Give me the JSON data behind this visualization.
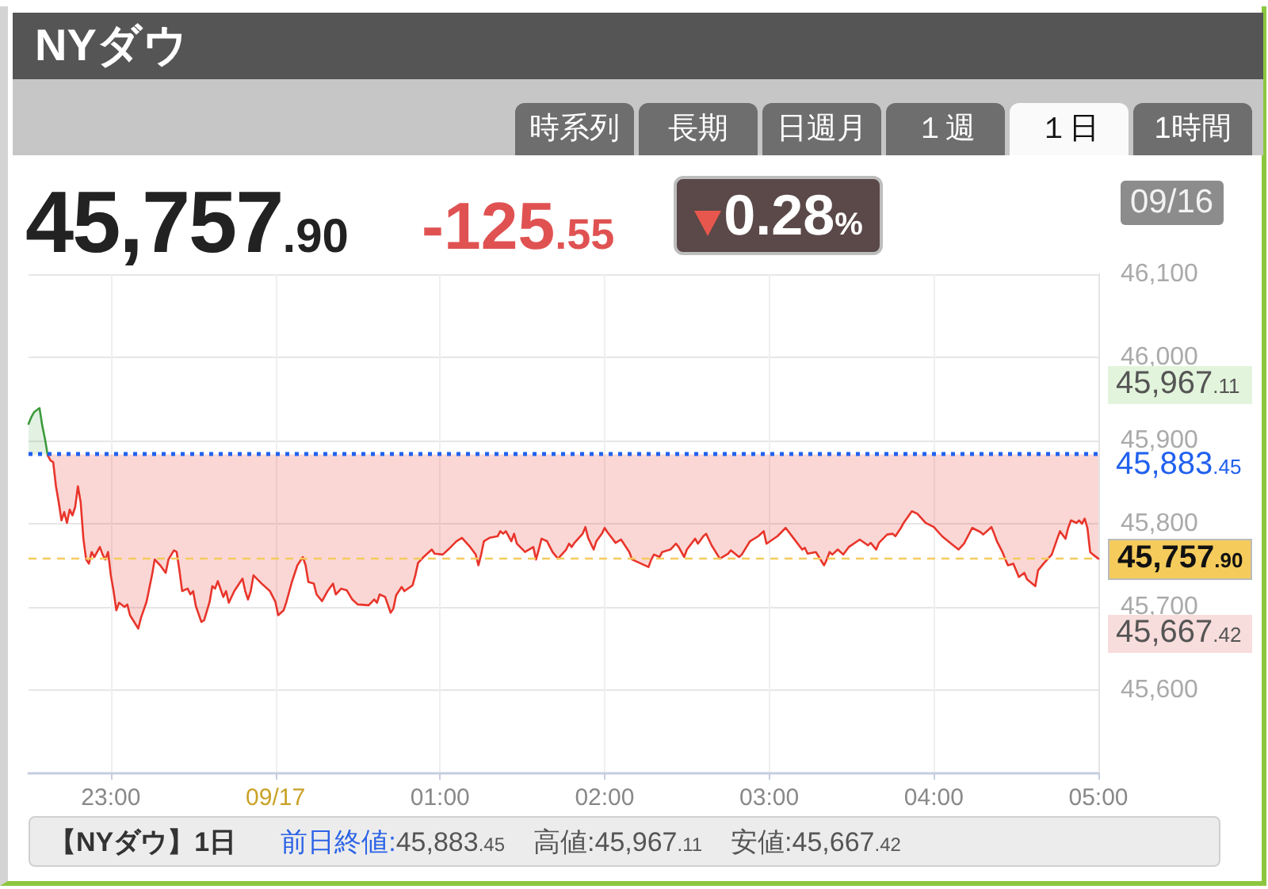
{
  "chart_data": {
    "type": "area",
    "title": "NYダウ",
    "annotations": [
      "45,757.90",
      "-125.55",
      "0.28%",
      "09/16",
      "時系列",
      "長期",
      "日週月",
      "１週",
      "１日",
      "1時間",
      "【NYダウ】1日",
      "前日終値:45,883.45",
      "高値:45,967.11",
      "安値:45,667.42",
      "45,967.11",
      "45,667.42"
    ],
    "series": [
      {
        "color": "#3c9a3c",
        "x": [
          "--09-16T22:30",
          "--09-16T22:31",
          "--09-16T22:32",
          "--09-16T22:34",
          "--09-16T22:35",
          "--09-16T22:36",
          "--09-16T22:37"
        ],
        "values": [
          45920,
          45928,
          45934,
          45939,
          45918,
          45902,
          45882
        ]
      },
      {
        "type": "line",
        "color": "#e8352b",
        "x": [
          "--09-16T22:37",
          "--09-16T22:38",
          "--09-16T22:39",
          "--09-16T22:40",
          "--09-16T22:41",
          "--09-16T22:42",
          "--09-16T22:43",
          "--09-16T22:44",
          "--09-16T22:45",
          "--09-16T22:46",
          "--09-16T22:47",
          "--09-16T22:48",
          "--09-16T22:49",
          "--09-16T22:50",
          "--09-16T22:51",
          "--09-16T22:52",
          "--09-16T22:53",
          "--09-16T22:54",
          "--09-16T22:56",
          "--09-16T22:57",
          "--09-16T22:58",
          "--09-16T22:59",
          "--09-16T23:00",
          "--09-16T23:01",
          "--09-16T23:02",
          "--09-16T23:03",
          "--09-16T23:05",
          "--09-16T23:06",
          "--09-16T23:07",
          "--09-16T23:10",
          "--09-16T23:11",
          "--09-16T23:13",
          "--09-16T23:15",
          "--09-16T23:16",
          "--09-16T23:18",
          "--09-16T23:20",
          "--09-16T23:21",
          "--09-16T23:23",
          "--09-16T23:24",
          "--09-16T23:25",
          "--09-16T23:26",
          "--09-16T23:28",
          "--09-16T23:29",
          "--09-16T23:30",
          "--09-16T23:31",
          "--09-16T23:33",
          "--09-16T23:34",
          "--09-16T23:36",
          "--09-16T23:37",
          "--09-16T23:38",
          "--09-16T23:39",
          "--09-16T23:41",
          "--09-16T23:42",
          "--09-16T23:43",
          "--09-16T23:45",
          "--09-16T23:48",
          "--09-16T23:49",
          "--09-16T23:50",
          "--09-16T23:51",
          "--09-16T23:52",
          "--09-16T23:55",
          "--09-16T23:58",
          "--09-17T00:00",
          "--09-17T00:01",
          "--09-17T00:03",
          "--09-17T00:04",
          "--09-17T00:06",
          "--09-17T00:08",
          "--09-17T00:10",
          "--09-17T00:11",
          "--09-17T00:12",
          "--09-17T00:14",
          "--09-17T00:15",
          "--09-17T00:17",
          "--09-17T00:19",
          "--09-17T00:21",
          "--09-17T00:22",
          "--09-17T00:24",
          "--09-17T00:26",
          "--09-17T00:28",
          "--09-17T00:30",
          "--09-17T00:34",
          "--09-17T00:36",
          "--09-17T00:37",
          "--09-17T00:38",
          "--09-17T00:40",
          "--09-17T00:42",
          "--09-17T00:43",
          "--09-17T00:44",
          "--09-17T00:46",
          "--09-17T00:47",
          "--09-17T00:50",
          "--09-17T00:51",
          "--09-17T00:52",
          "--09-17T00:54",
          "--09-17T00:57",
          "--09-17T00:58",
          "--09-17T01:01",
          "--09-17T01:03",
          "--09-17T01:06",
          "--09-17T01:08",
          "--09-17T01:11",
          "--09-17T01:13",
          "--09-17T01:14",
          "--09-17T01:15",
          "--09-17T01:16",
          "--09-17T01:18",
          "--09-17T01:21",
          "--09-17T01:22",
          "--09-17T01:23",
          "--09-17T01:24",
          "--09-17T01:26",
          "--09-17T01:27",
          "--09-17T01:28",
          "--09-17T01:31",
          "--09-17T01:34",
          "--09-17T01:35",
          "--09-17T01:36",
          "--09-17T01:37",
          "--09-17T01:39",
          "--09-17T01:41",
          "--09-17T01:43",
          "--09-17T01:46",
          "--09-17T01:47",
          "--09-17T01:48",
          "--09-17T01:49",
          "--09-17T01:52",
          "--09-17T01:53",
          "--09-17T01:54",
          "--09-17T01:56",
          "--09-17T01:57",
          "--09-17T01:59",
          "--09-17T02:00",
          "--09-17T02:01",
          "--09-17T02:04",
          "--09-17T02:06",
          "--09-17T02:09",
          "--09-17T02:10",
          "--09-17T02:16",
          "--09-17T02:17",
          "--09-17T02:18",
          "--09-17T02:20",
          "--09-17T02:21",
          "--09-17T02:24",
          "--09-17T02:26",
          "--09-17T02:27",
          "--09-17T02:29",
          "--09-17T02:30",
          "--09-17T02:33",
          "--09-17T02:34",
          "--09-17T02:36",
          "--09-17T02:37",
          "--09-17T02:39",
          "--09-17T02:42",
          "--09-17T02:45",
          "--09-17T02:46",
          "--09-17T02:49",
          "--09-17T02:50",
          "--09-17T02:53",
          "--09-17T02:56",
          "--09-17T02:58",
          "--09-17T02:59",
          "--09-17T03:03",
          "--09-17T03:06",
          "--09-17T03:09",
          "--09-17T03:12",
          "--09-17T03:13",
          "--09-17T03:14",
          "--09-17T03:17",
          "--09-17T03:20",
          "--09-17T03:21",
          "--09-17T03:22",
          "--09-17T03:23",
          "--09-17T03:25",
          "--09-17T03:27",
          "--09-17T03:29",
          "--09-17T03:33",
          "--09-17T03:36",
          "--09-17T03:37",
          "--09-17T03:39",
          "--09-17T03:40",
          "--09-17T03:43",
          "--09-17T03:45",
          "--09-17T03:46",
          "--09-17T03:48",
          "--09-17T03:49",
          "--09-17T03:52",
          "--09-17T03:54",
          "--09-17T03:57",
          "--09-17T04:00",
          "--09-17T04:03",
          "--09-17T04:06",
          "--09-17T04:09",
          "--09-17T04:11",
          "--09-17T04:14",
          "--09-17T04:17",
          "--09-17T04:18",
          "--09-17T04:21",
          "--09-17T04:22",
          "--09-17T04:23",
          "--09-17T04:25",
          "--09-17T04:27",
          "--09-17T04:29",
          "--09-17T04:30",
          "--09-17T04:31",
          "--09-17T04:33",
          "--09-17T04:34",
          "--09-17T04:37",
          "--09-17T04:38",
          "--09-17T04:40",
          "--09-17T04:43",
          "--09-17T04:45",
          "--09-17T04:46",
          "--09-17T04:48",
          "--09-17T04:49",
          "--09-17T04:50",
          "--09-17T04:52",
          "--09-17T04:53",
          "--09-17T04:54",
          "--09-17T04:55",
          "--09-17T04:56",
          "--09-17T04:57",
          "--09-17T04:58",
          "--09-17T05:00"
        ],
        "values": [
          45882,
          45876,
          45874,
          45845,
          45826,
          45804,
          45814,
          45801,
          45817,
          45810,
          45820,
          45845,
          45826,
          45782,
          45757,
          45752,
          45766,
          45760,
          45772,
          45763,
          45757,
          45766,
          45738,
          45719,
          45696,
          45705,
          45700,
          45703,
          45690,
          45674,
          45687,
          45706,
          45738,
          45757,
          45750,
          45741,
          45757,
          45768,
          45766,
          45744,
          45719,
          45722,
          45715,
          45719,
          45701,
          45682,
          45684,
          45706,
          45725,
          45722,
          45731,
          45712,
          45719,
          45705,
          45719,
          45734,
          45719,
          45709,
          45719,
          45738,
          45728,
          45719,
          45706,
          45690,
          45696,
          45706,
          45730,
          45750,
          45760,
          45750,
          45730,
          45728,
          45715,
          45707,
          45719,
          45728,
          45715,
          45722,
          45720,
          45709,
          45703,
          45702,
          45709,
          45705,
          45715,
          45712,
          45693,
          45698,
          45714,
          45724,
          45719,
          45726,
          45738,
          45753,
          45760,
          45769,
          45764,
          45763,
          45769,
          45779,
          45783,
          45772,
          45763,
          45750,
          45763,
          45779,
          45783,
          45785,
          45791,
          45788,
          45791,
          45779,
          45788,
          45776,
          45766,
          45772,
          45757,
          45769,
          45782,
          45779,
          45766,
          45758,
          45769,
          45776,
          45772,
          45777,
          45788,
          45796,
          45783,
          45769,
          45779,
          45788,
          45795,
          45790,
          45777,
          45781,
          45766,
          45757,
          45748,
          45757,
          45763,
          45760,
          45766,
          45769,
          45776,
          45772,
          45760,
          45769,
          45782,
          45776,
          45785,
          45788,
          45774,
          45758,
          45764,
          45768,
          45760,
          45763,
          45779,
          45785,
          45791,
          45776,
          45785,
          45795,
          45782,
          45769,
          45771,
          45764,
          45766,
          45750,
          45757,
          45766,
          45763,
          45769,
          45763,
          45772,
          45781,
          45774,
          45777,
          45769,
          45777,
          45787,
          45788,
          45785,
          45795,
          45801,
          45815,
          45812,
          45801,
          45796,
          45785,
          45777,
          45769,
          45776,
          45795,
          45790,
          45787,
          45796,
          45788,
          45779,
          45766,
          45750,
          45752,
          45744,
          45736,
          45741,
          45733,
          45725,
          45744,
          45752,
          45763,
          45782,
          45791,
          45782,
          45795,
          45804,
          45801,
          45804,
          45800,
          45806,
          45795,
          45766,
          45763,
          45758
        ],
        "lower": [
          45882,
          45876,
          45874,
          45845,
          45826,
          45804,
          45814,
          45801,
          45817,
          45810,
          45820,
          45845,
          45826,
          45782,
          45757,
          45752,
          45766,
          45760,
          45772,
          45763,
          45757,
          45766,
          45738,
          45719,
          45696,
          45705,
          45700,
          45703,
          45690,
          45674,
          45687,
          45706,
          45738,
          45757,
          45750,
          45741,
          45757,
          45768,
          45766,
          45744,
          45719,
          45722,
          45715,
          45719,
          45701,
          45682,
          45684,
          45706,
          45725,
          45722,
          45731,
          45712,
          45719,
          45705,
          45719,
          45734,
          45719,
          45709,
          45719,
          45738,
          45728,
          45719,
          45706,
          45690,
          45696,
          45706,
          45730,
          45750,
          45760,
          45750,
          45730,
          45728,
          45715,
          45707,
          45719,
          45728,
          45715,
          45722,
          45720,
          45709,
          45703,
          45702,
          45709,
          45705,
          45715,
          45712,
          45693,
          45698,
          45714,
          45724,
          45719,
          45726,
          45738,
          45753,
          45760,
          45769,
          45764,
          45763,
          45769,
          45779,
          45783,
          45772,
          45763,
          45750,
          45763,
          45779,
          45783,
          45785,
          45791,
          45788,
          45791,
          45779,
          45788,
          45776,
          45766,
          45772,
          45757,
          45769,
          45782,
          45779,
          45766,
          45758,
          45769,
          45776,
          45772,
          45777,
          45788,
          45796,
          45783,
          45769,
          45779,
          45788,
          45795,
          45790,
          45777,
          45781,
          45766,
          45757,
          45748,
          45757,
          45763,
          45760,
          45766,
          45769,
          45776,
          45772,
          45760,
          45769,
          45782,
          45776,
          45785,
          45788,
          45774,
          45758,
          45764,
          45768,
          45760,
          45763,
          45779,
          45785,
          45791,
          45776,
          45785,
          45795,
          45782,
          45769,
          45771,
          45764,
          45766,
          45750,
          45757,
          45766,
          45763,
          45769,
          45763,
          45772,
          45781,
          45774,
          45777,
          45769,
          45777,
          45787,
          45788,
          45785,
          45795,
          45801,
          45815,
          45812,
          45801,
          45796,
          45785,
          45777,
          45769,
          45776,
          45795,
          45790,
          45787,
          45796,
          45788,
          45779,
          45766,
          45750,
          45752,
          45744,
          45736,
          45741,
          45733,
          45725,
          45744,
          45752,
          45763,
          45782,
          45791,
          45782,
          45795,
          45804,
          45801,
          45804,
          45800,
          45806,
          45795,
          45766,
          45763,
          45758
        ],
        "upper": [
          45883.45,
          45883.45,
          45883.45,
          45883.45,
          45883.45,
          45883.45,
          45883.45,
          45883.45,
          45883.45,
          45883.45,
          45883.45,
          45883.45,
          45883.45,
          45883.45,
          45883.45,
          45883.45,
          45883.45,
          45883.45,
          45883.45,
          45883.45,
          45883.45,
          45883.45,
          45883.45,
          45883.45,
          45883.45,
          45883.45,
          45883.45,
          45883.45,
          45883.45,
          45883.45,
          45883.45,
          45883.45,
          45883.45,
          45883.45,
          45883.45,
          45883.45,
          45883.45,
          45883.45,
          45883.45,
          45883.45,
          45883.45,
          45883.45,
          45883.45,
          45883.45,
          45883.45,
          45883.45,
          45883.45,
          45883.45,
          45883.45,
          45883.45,
          45883.45,
          45883.45,
          45883.45,
          45883.45,
          45883.45,
          45883.45,
          45883.45,
          45883.45,
          45883.45,
          45883.45,
          45883.45,
          45883.45,
          45883.45,
          45883.45,
          45883.45,
          45883.45,
          45883.45,
          45883.45,
          45883.45,
          45883.45,
          45883.45,
          45883.45,
          45883.45,
          45883.45,
          45883.45,
          45883.45,
          45883.45,
          45883.45,
          45883.45,
          45883.45,
          45883.45,
          45883.45,
          45883.45,
          45883.45,
          45883.45,
          45883.45,
          45883.45,
          45883.45,
          45883.45,
          45883.45,
          45883.45,
          45883.45,
          45883.45,
          45883.45,
          45883.45,
          45883.45,
          45883.45,
          45883.45,
          45883.45,
          45883.45,
          45883.45,
          45883.45,
          45883.45,
          45883.45,
          45883.45,
          45883.45,
          45883.45,
          45883.45,
          45883.45,
          45883.45,
          45883.45,
          45883.45,
          45883.45,
          45883.45,
          45883.45,
          45883.45,
          45883.45,
          45883.45,
          45883.45,
          45883.45,
          45883.45,
          45883.45,
          45883.45,
          45883.45,
          45883.45,
          45883.45,
          45883.45,
          45883.45,
          45883.45,
          45883.45,
          45883.45,
          45883.45,
          45883.45,
          45883.45,
          45883.45,
          45883.45,
          45883.45,
          45883.45,
          45883.45,
          45883.45,
          45883.45,
          45883.45,
          45883.45,
          45883.45,
          45883.45,
          45883.45,
          45883.45,
          45883.45,
          45883.45,
          45883.45,
          45883.45,
          45883.45,
          45883.45,
          45883.45,
          45883.45,
          45883.45,
          45883.45,
          45883.45,
          45883.45,
          45883.45,
          45883.45,
          45883.45,
          45883.45,
          45883.45,
          45883.45,
          45883.45,
          45883.45,
          45883.45,
          45883.45,
          45883.45,
          45883.45,
          45883.45,
          45883.45,
          45883.45,
          45883.45,
          45883.45,
          45883.45,
          45883.45,
          45883.45,
          45883.45,
          45883.45,
          45883.45,
          45883.45,
          45883.45,
          45883.45,
          45883.45,
          45883.45,
          45883.45,
          45883.45,
          45883.45,
          45883.45,
          45883.45,
          45883.45,
          45883.45,
          45883.45,
          45883.45,
          45883.45,
          45883.45,
          45883.45,
          45883.45,
          45883.45,
          45883.45,
          45883.45,
          45883.45,
          45883.45,
          45883.45,
          45883.45,
          45883.45,
          45883.45,
          45883.45,
          45883.45,
          45883.45,
          45883.45,
          45883.45,
          45883.45,
          45883.45,
          45883.45,
          45883.45,
          45883.45,
          45883.45,
          45883.45,
          45883.45,
          45883.45,
          45883.45
        ]
      }
    ],
    "xlim": [
      "--09-16T22:30",
      "--09-17T05:00"
    ],
    "xticks": [
      {
        "value": "--09-16T23:00",
        "label": "23:00"
      },
      {
        "value": "--09-17T00:00",
        "label": "09/17"
      },
      {
        "value": "--09-17T01:00",
        "label": "01:00"
      },
      {
        "value": "--09-17T02:00",
        "label": "02:00"
      },
      {
        "value": "--09-17T03:00",
        "label": "03:00"
      },
      {
        "value": "--09-17T04:00",
        "label": "04:00"
      },
      {
        "value": "--09-17T05:00",
        "label": "05:00"
      }
    ],
    "ylim": [
      45500,
      46100
    ],
    "yticks": [
      {
        "value": 45600,
        "label": "45,600"
      },
      {
        "value": 45700,
        "label": "45,700"
      },
      {
        "value": 45800,
        "label": "45,800"
      },
      {
        "value": 45900,
        "label": "45,900"
      },
      {
        "value": 46000,
        "label": "46,000"
      },
      {
        "value": 46100,
        "label": "46,100"
      }
    ],
    "grid": true,
    "marker": "none",
    "ref_lines": [
      {
        "axis": "y",
        "value": 45883.45,
        "label": "45,883.45",
        "color": "#2161ee",
        "line_style": "dotted"
      },
      {
        "axis": "y",
        "value": 45757.9,
        "label": "45,757.90",
        "color": "#f5cb5c",
        "line_style": "dashed"
      }
    ]
  }
}
